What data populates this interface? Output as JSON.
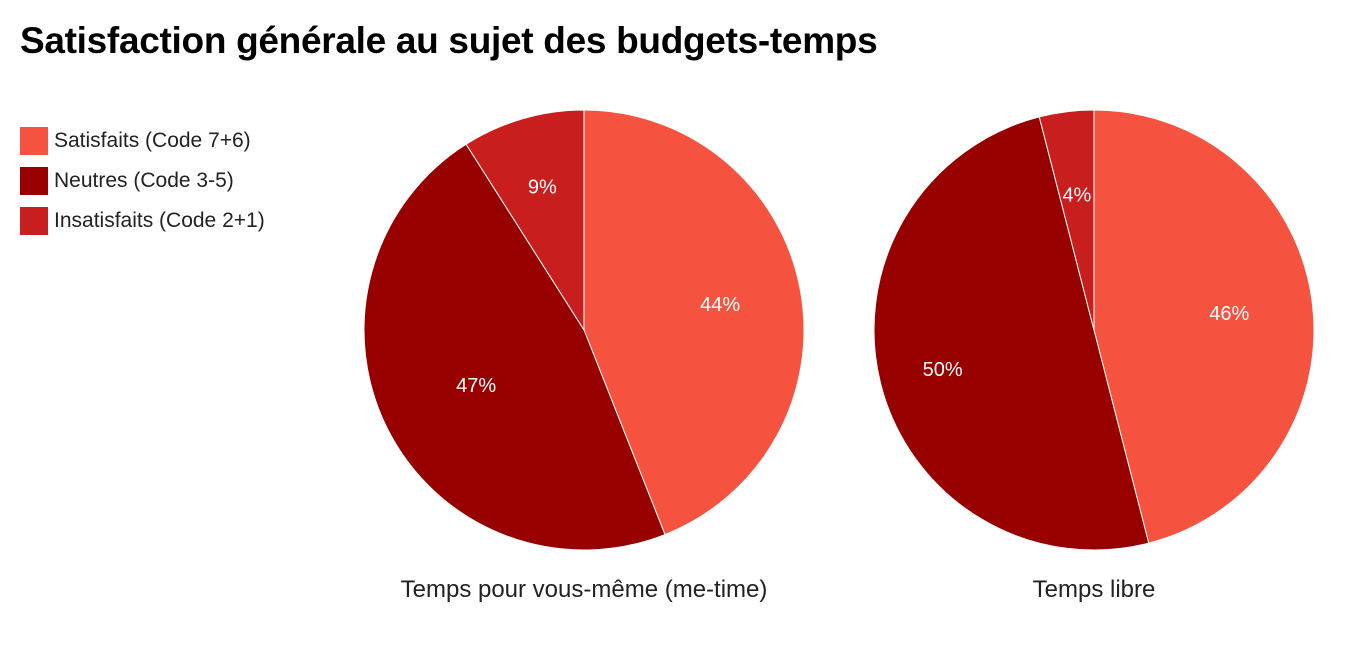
{
  "colors": {
    "satisfied": "#F5533F",
    "neutral": "#980000",
    "unsatisfied": "#C81E1E",
    "label_text": "#ffffff"
  },
  "chart_data": [
    {
      "type": "pie",
      "title": "Satisfaction générale au sujet des budgets-temps",
      "caption": "Temps pour vous-même (me-time)",
      "legend_position": "left",
      "slices": [
        {
          "name": "Satisfaits (Code 7+6)",
          "value": 44,
          "label": "44%",
          "color_key": "satisfied"
        },
        {
          "name": "Neutres (Code 3-5)",
          "value": 47,
          "label": "47%",
          "color_key": "neutral"
        },
        {
          "name": "Insatisfaits (Code 2+1)",
          "value": 9,
          "label": "9%",
          "color_key": "unsatisfied"
        }
      ]
    },
    {
      "type": "pie",
      "title": "Satisfaction générale au sujet des budgets-temps",
      "caption": "Temps libre",
      "legend_position": "left",
      "slices": [
        {
          "name": "Satisfaits (Code 7+6)",
          "value": 46,
          "label": "46%",
          "color_key": "satisfied"
        },
        {
          "name": "Neutres (Code 3-5)",
          "value": 50,
          "label": "50%",
          "color_key": "neutral"
        },
        {
          "name": "Insatisfaits (Code 2+1)",
          "value": 4,
          "label": "4%",
          "color_key": "unsatisfied"
        }
      ]
    }
  ],
  "header": {
    "title": "Satisfaction générale au sujet des budgets-temps"
  },
  "legend": {
    "items": [
      {
        "label": "Satisfaits (Code 7+6)",
        "color_key": "satisfied"
      },
      {
        "label": "Neutres (Code 3-5)",
        "color_key": "neutral"
      },
      {
        "label": "Insatisfaits (Code 2+1)",
        "color_key": "unsatisfied"
      }
    ]
  }
}
